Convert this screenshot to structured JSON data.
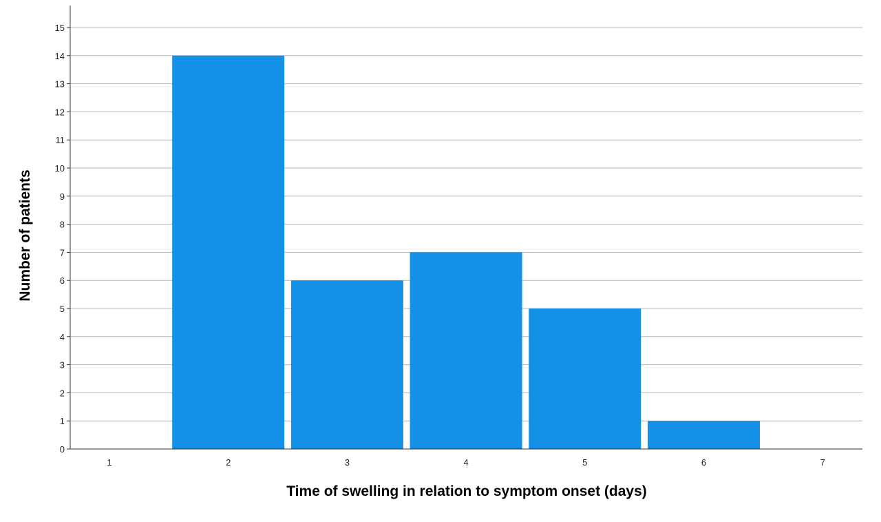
{
  "chart_data": {
    "type": "bar",
    "categories": [
      "1",
      "2",
      "3",
      "4",
      "5",
      "6",
      "7"
    ],
    "values": [
      0,
      14,
      6,
      7,
      5,
      1,
      0
    ],
    "xlabel": "Time of swelling in relation to symptom onset (days)",
    "ylabel": "Number of patients",
    "ylim": [
      0,
      15
    ],
    "yticks": [
      "0",
      "1",
      "2",
      "3",
      "4",
      "5",
      "6",
      "7",
      "8",
      "9",
      "10",
      "11",
      "12",
      "13",
      "14",
      "15"
    ],
    "grid": true,
    "bar_color": "#1490e6",
    "grid_color": "#b5b5b5"
  }
}
